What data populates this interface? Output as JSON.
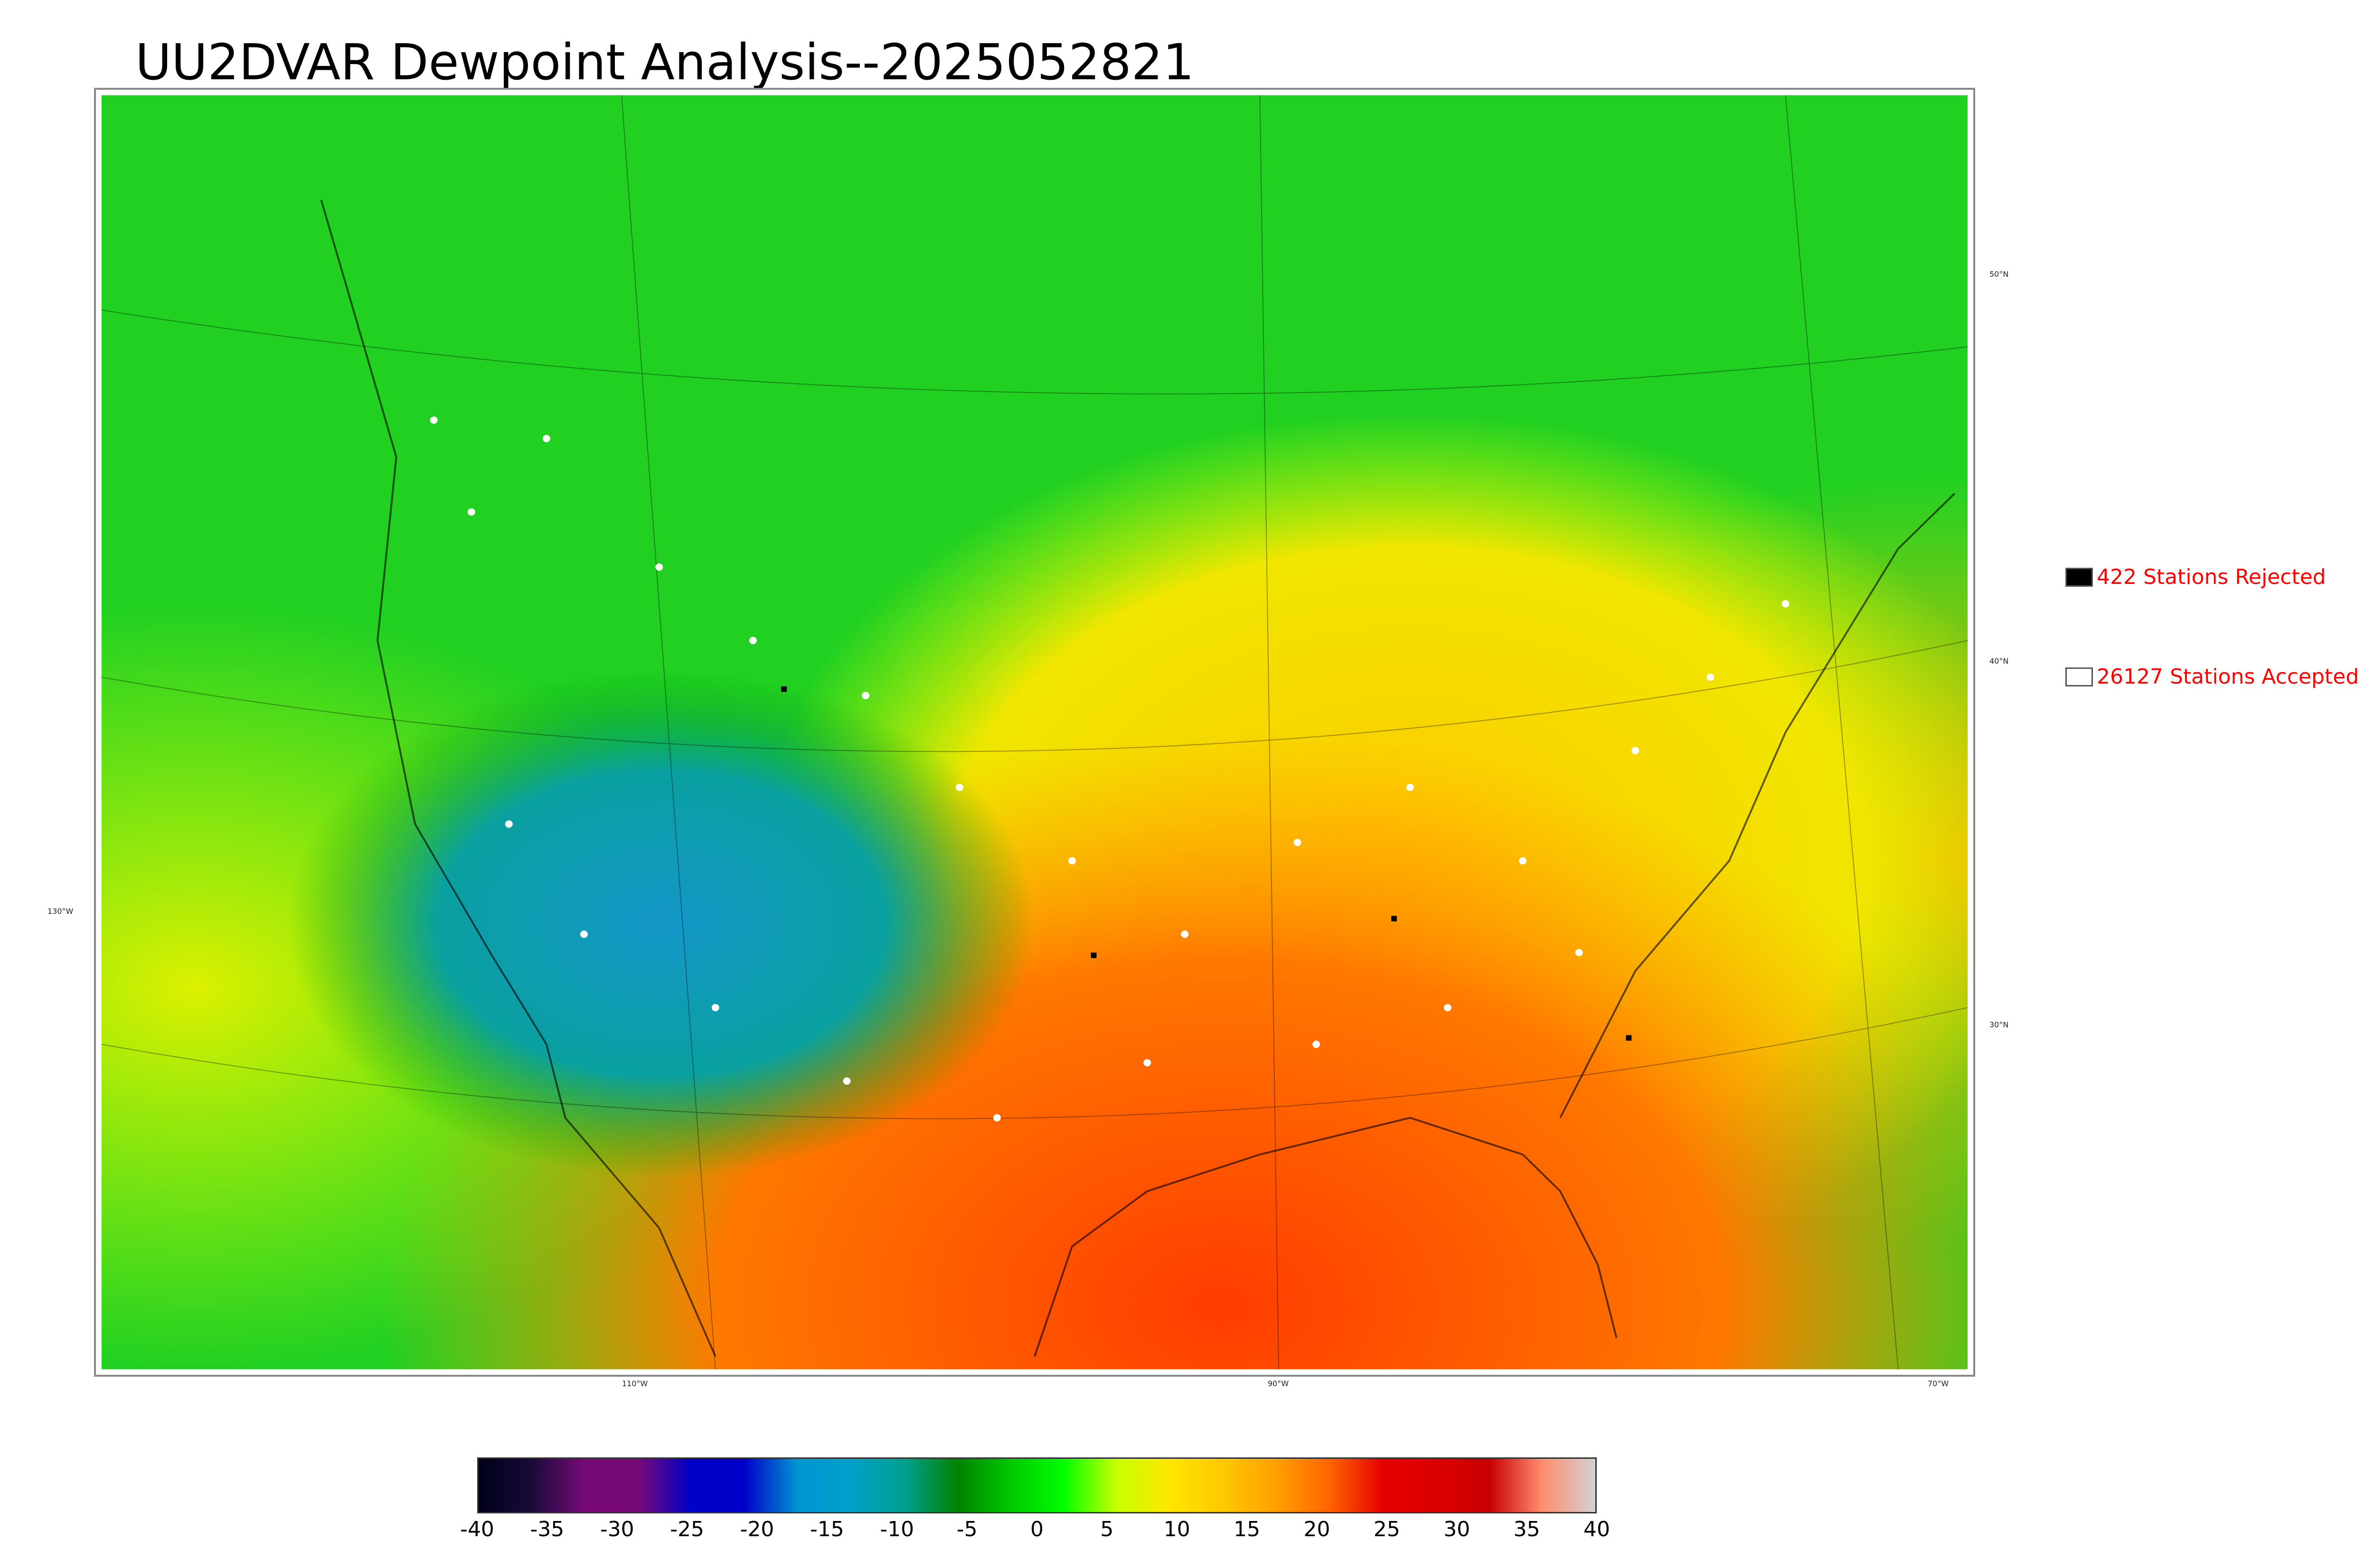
{
  "title": "UU2DVAR Dewpoint Analysis--2025052821",
  "legend": [
    {
      "label": "422 Stations Rejected",
      "swatch_color": "#000000"
    },
    {
      "label": "26127 Stations Accepted",
      "swatch_color": "#ffffff"
    }
  ],
  "longitude_ticks": [
    "110°W",
    "90°W",
    "70°W"
  ],
  "latitude_ticks": [
    "50°N",
    "40°N",
    "30°N"
  ],
  "left_tick": "130°W",
  "colorbar": {
    "ticks": [
      "-40",
      "-35",
      "-30",
      "-25",
      "-20",
      "-15",
      "-10",
      "-5",
      "0",
      "5",
      "10",
      "15",
      "20",
      "25",
      "30",
      "35",
      "40"
    ],
    "colors": [
      "#000018",
      "#1a0a3a",
      "#780a78",
      "#780a78",
      "#0000c8",
      "#0000c8",
      "#0096d2",
      "#00a0c8",
      "#00a090",
      "#008200",
      "#00c800",
      "#00ff00",
      "#c8ff00",
      "#ffe600",
      "#ffc800",
      "#ffa000",
      "#ff6400",
      "#e60000",
      "#dc0000",
      "#c80000",
      "#ff8c6e",
      "#d2d2d2"
    ]
  }
}
